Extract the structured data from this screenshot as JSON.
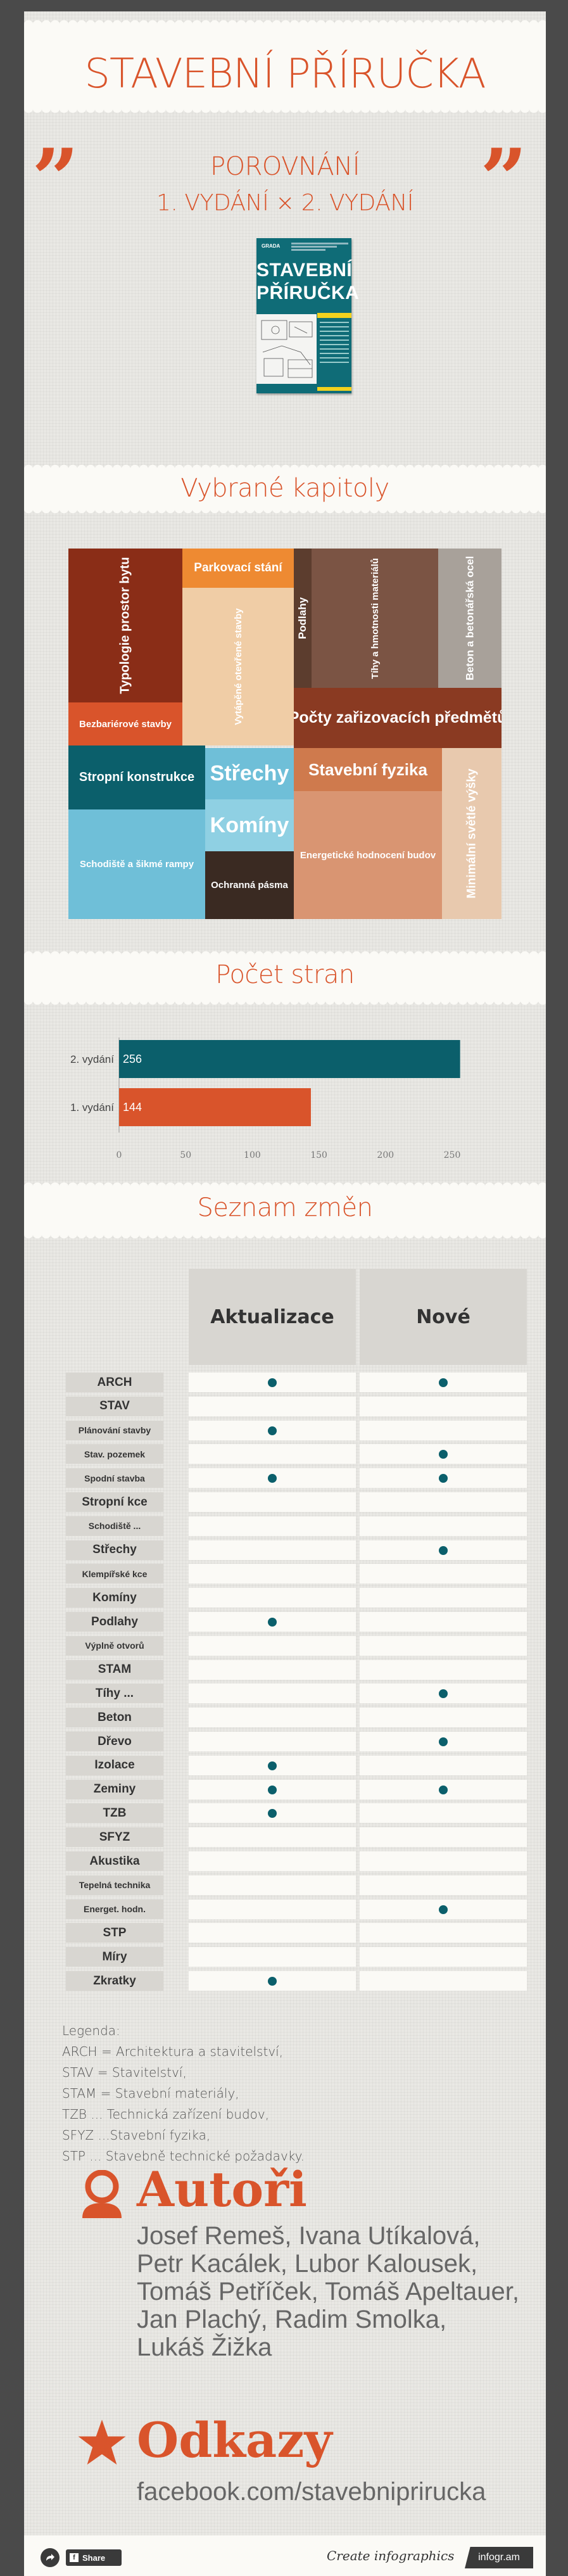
{
  "header": {
    "title": "STAVEBNÍ PŘÍRUČKA",
    "subtitle_line1": "POROVNÁNÍ",
    "subtitle_line2": "1. VYDÁNÍ × 2. VYDÁNÍ",
    "quote_mark": "”"
  },
  "book_cover": {
    "publisher": "GRADA",
    "title_line1": "STAVEBNÍ",
    "title_line2": "PŘÍRUČKA"
  },
  "chapters": {
    "title": "Vybrané kapitoly",
    "items": [
      {
        "label": "Typologie prostor bytu",
        "color": "#8a2d17"
      },
      {
        "label": "Bezbariérové stavby",
        "color": "#d9542b"
      },
      {
        "label": "Parkovací stání",
        "color": "#ee8a32"
      },
      {
        "label": "Vytápěné otevřené stavby",
        "color": "#f0cda6"
      },
      {
        "label": "Podlahy",
        "color": "#5c3d2e"
      },
      {
        "label": "Tíhy a hmotnosti materiálů",
        "color": "#7b5444"
      },
      {
        "label": "Beton a betonářská ocel",
        "color": "#a8a19a"
      },
      {
        "label": "Počty zařizovacích předmětů",
        "color": "#8a3a22"
      },
      {
        "label": "Stropní konstrukce",
        "color": "#0b5f6b"
      },
      {
        "label": "Střechy",
        "color": "#6fbfd8"
      },
      {
        "label": "Komíny",
        "color": "#8fd0e3"
      },
      {
        "label": "Stavební fyzika",
        "color": "#cf7a4d"
      },
      {
        "label": "Minimální světlé výšky",
        "color": "#e8c9ae"
      },
      {
        "label": "Schodiště a šikmé rampy",
        "color": "#6fbfd8"
      },
      {
        "label": "Ochranná pásma",
        "color": "#3a2a22"
      },
      {
        "label": "Energetické hodnocení budov",
        "color": "#d99572"
      }
    ]
  },
  "pages": {
    "title": "Počet stran"
  },
  "chart_data": {
    "type": "bar",
    "orientation": "horizontal",
    "categories": [
      "2. vydání",
      "1. vydání"
    ],
    "values": [
      256,
      144
    ],
    "value_labels": [
      "256",
      "144"
    ],
    "colors": [
      "#0b5f6b",
      "#d9542b"
    ],
    "xlim": [
      0,
      250
    ],
    "xticks": [
      "0",
      "50",
      "100",
      "150",
      "200",
      "250"
    ]
  },
  "changes": {
    "title": "Seznam změn",
    "col_update": "Aktualizace",
    "col_new": "Nové",
    "rows": [
      {
        "label": "ARCH",
        "update": true,
        "new": true
      },
      {
        "label": "STAV",
        "update": false,
        "new": false
      },
      {
        "label": "Plánování stavby",
        "update": true,
        "new": false
      },
      {
        "label": "Stav. pozemek",
        "update": false,
        "new": true
      },
      {
        "label": "Spodní stavba",
        "update": true,
        "new": true
      },
      {
        "label": "Stropní kce",
        "update": false,
        "new": false
      },
      {
        "label": "Schodiště ...",
        "update": false,
        "new": false
      },
      {
        "label": "Střechy",
        "update": false,
        "new": true
      },
      {
        "label": "Klempířské kce",
        "update": false,
        "new": false
      },
      {
        "label": "Komíny",
        "update": false,
        "new": false
      },
      {
        "label": "Podlahy",
        "update": true,
        "new": false
      },
      {
        "label": "Výplně otvorů",
        "update": false,
        "new": false
      },
      {
        "label": "STAM",
        "update": false,
        "new": false
      },
      {
        "label": "Tíhy ...",
        "update": false,
        "new": true
      },
      {
        "label": "Beton",
        "update": false,
        "new": false
      },
      {
        "label": "Dřevo",
        "update": false,
        "new": true
      },
      {
        "label": "Izolace",
        "update": true,
        "new": false
      },
      {
        "label": "Zeminy",
        "update": true,
        "new": true
      },
      {
        "label": "TZB",
        "update": true,
        "new": false
      },
      {
        "label": "SFYZ",
        "update": false,
        "new": false
      },
      {
        "label": "Akustika",
        "update": false,
        "new": false
      },
      {
        "label": "Tepelná technika",
        "update": false,
        "new": false
      },
      {
        "label": "Energet. hodn.",
        "update": false,
        "new": true
      },
      {
        "label": "STP",
        "update": false,
        "new": false
      },
      {
        "label": "Míry",
        "update": false,
        "new": false
      },
      {
        "label": "Zkratky",
        "update": true,
        "new": false
      }
    ]
  },
  "legend": {
    "title": "Legenda:",
    "lines": [
      "ARCH = Architektura a stavitelství,",
      "STAV = Stavitelství,",
      "STAM = Stavební materiály,",
      "TZB ... Technická zařízení budov,",
      "SFYZ ...Stavební fyzika,",
      "STP ... Stavebně technické požadavky."
    ]
  },
  "authors": {
    "title": "Autoři",
    "icon": "person-icon",
    "lines": [
      "Josef Remeš, Ivana Utíkalová,",
      "Petr Kacálek, Lubor Kalousek,",
      "Tomáš Petříček, Tomáš Apeltauer,",
      "Jan Plachý, Radim Smolka,",
      "Lukáš Žižka"
    ]
  },
  "links": {
    "title": "Odkazy",
    "icon": "star-icon",
    "url": "facebook.com/stavebniprirucka"
  },
  "footer": {
    "share_label": "Share",
    "create_text": "Create infographics",
    "brand": "infogr.am"
  }
}
